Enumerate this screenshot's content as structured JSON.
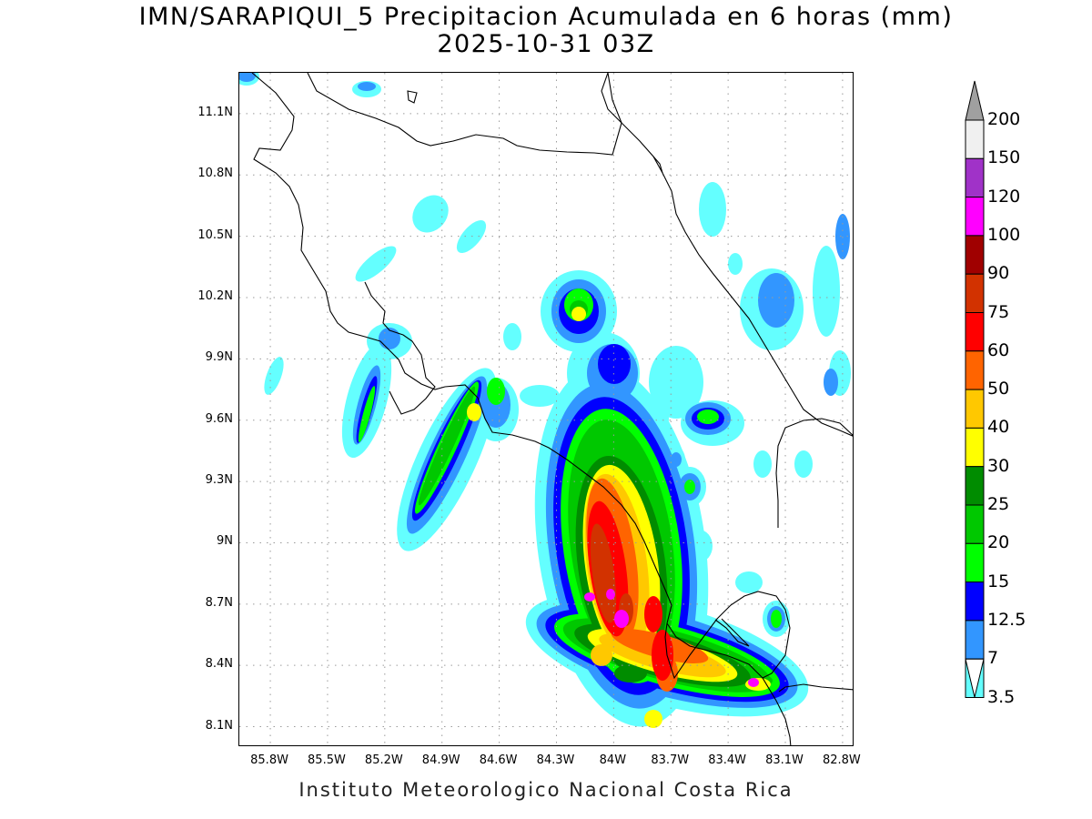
{
  "title": {
    "line1": "IMN/SARAPIQUI_5 Precipitacion Acumulada en 6 horas (mm)",
    "line2": "2025-10-31 03Z"
  },
  "footer": "Instituto Meteorologico Nacional Costa Rica",
  "map": {
    "lat_ticks": [
      "11.1N",
      "10.8N",
      "10.5N",
      "10.2N",
      "9.9N",
      "9.6N",
      "9.3N",
      "9N",
      "8.7N",
      "8.4N",
      "8.1N"
    ],
    "lat_values": [
      11.1,
      10.8,
      10.5,
      10.2,
      9.9,
      9.6,
      9.3,
      9.0,
      8.7,
      8.4,
      8.1
    ],
    "lon_ticks": [
      "85.8W",
      "85.5W",
      "85.2W",
      "84.9W",
      "84.6W",
      "84.3W",
      "84W",
      "83.7W",
      "83.4W",
      "83.1W",
      "82.8W"
    ],
    "lon_values": [
      -85.8,
      -85.5,
      -85.2,
      -84.9,
      -84.6,
      -84.3,
      -84.0,
      -83.7,
      -83.4,
      -83.1,
      -82.8
    ],
    "lon_range": [
      -85.9625,
      -82.7375
    ],
    "lat_range": [
      8.0,
      11.3
    ],
    "grid": "dotted"
  },
  "colorbar": {
    "levels": [
      "200",
      "150",
      "120",
      "100",
      "90",
      "75",
      "60",
      "50",
      "40",
      "30",
      "25",
      "20",
      "15",
      "12.5",
      "7",
      "3.5"
    ],
    "colors": [
      "#a0a0a0",
      "#f0f0f0",
      "#a032c8",
      "#ff00ff",
      "#a00000",
      "#d23200",
      "#ff0000",
      "#ff6400",
      "#ffc800",
      "#ffff00",
      "#008c00",
      "#00c800",
      "#00ff00",
      "#0000ff",
      "#3296ff",
      "#64ffff"
    ]
  }
}
